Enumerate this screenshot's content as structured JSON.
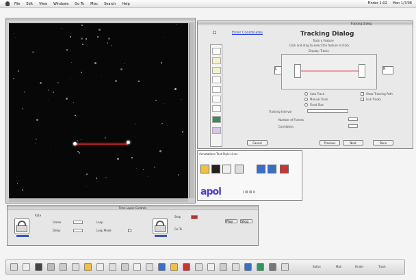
{
  "menubar": {
    "items": [
      "File",
      "Edit",
      "View",
      "Windows",
      "Go To",
      "Misc",
      "Search",
      "Help"
    ],
    "right": [
      "Finder 1:02",
      "Mon 1/7/08"
    ]
  },
  "dialog": {
    "title": "Tracking Dialog",
    "tab_label": "Tracking Dialog",
    "link_label": "Enter Coordinates",
    "subtitle": "Track a Feature",
    "instructions": "Click and drag to select the feature to track",
    "display_label": "Display: Tracks",
    "radio_labels": [
      "Auto Track",
      "Manual Track",
      "Fixed Size"
    ],
    "field_labels": [
      "Tracking Interval",
      "Number of Frames",
      "Correlation"
    ],
    "check_labels": [
      "Show Tracking Path",
      "Link Tracks"
    ],
    "buttons": {
      "cancel": "Cancel",
      "previous": "Previous",
      "next": "Next",
      "done": "Done"
    },
    "side_left": "L",
    "side_right": "R"
  },
  "palette": {
    "header": "Annotations  Text  Style  Lines",
    "text_sample": "apol",
    "mini_text": "I III III II"
  },
  "control": {
    "title": "Time Lapse Controls",
    "labels": [
      "Rate",
      "Frame",
      "Delay",
      "Loop",
      "Loop Mode",
      "Step",
      "Go To"
    ],
    "play_label": "Play",
    "stop_label": "Stop"
  },
  "dock": {
    "labels": [
      "Safari",
      "Mail",
      "Finder",
      "Trash"
    ]
  },
  "colors": {
    "track_red": "#a02424",
    "link_blue": "#2b3fd8",
    "palette_purple": "#4d3fd0",
    "swatch_yellow": "#f0c040",
    "swatch_blue": "#3a6fc6",
    "swatch_red": "#c33"
  }
}
